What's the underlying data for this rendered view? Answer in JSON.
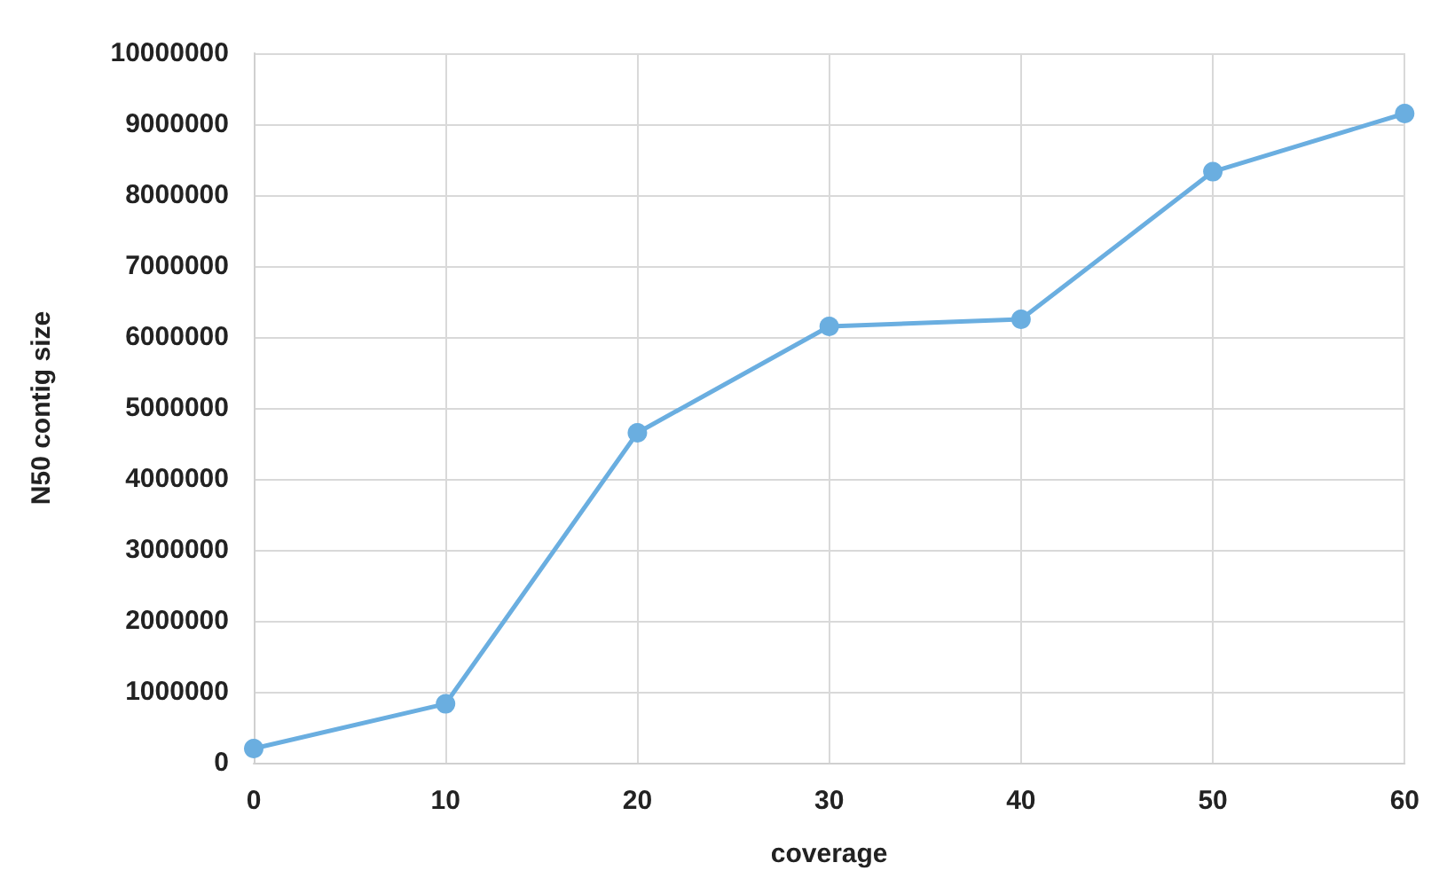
{
  "chart_data": {
    "type": "line",
    "xlabel": "coverage",
    "ylabel": "N50 contig size",
    "x": [
      0,
      10,
      20,
      30,
      40,
      50,
      60
    ],
    "series": [
      {
        "color": "#6aaee0",
        "values": [
          200000,
          830000,
          4650000,
          6150000,
          6250000,
          8330000,
          9150000
        ]
      }
    ],
    "xlim": [
      0,
      60
    ],
    "xticks": [
      0,
      10,
      20,
      30,
      40,
      50,
      60
    ],
    "ylim": [
      0,
      10000000
    ],
    "yticks": [
      0,
      1000000,
      2000000,
      3000000,
      4000000,
      5000000,
      6000000,
      7000000,
      8000000,
      9000000,
      10000000
    ],
    "grid": true,
    "marker": "circle",
    "line_style": "solid"
  }
}
